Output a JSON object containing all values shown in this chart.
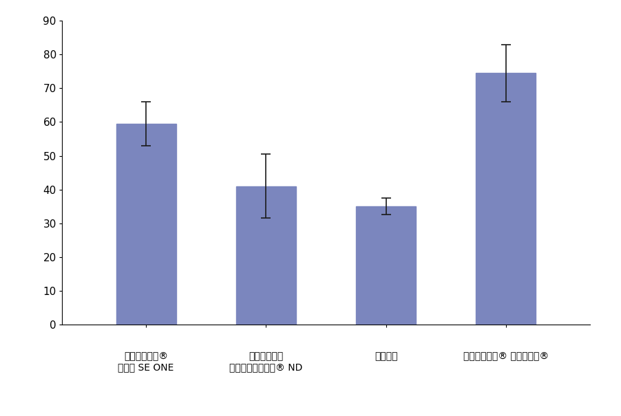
{
  "categories_line1": [
    "クリアフィル®",
    "クリアフィル",
    "他社製品",
    "クリアフィル® メガボンド®"
  ],
  "categories_line2": [
    "ボンド SE ONE",
    "トライエスボンド® ND",
    "",
    ""
  ],
  "values": [
    59.5,
    41.0,
    35.0,
    74.5
  ],
  "errors_upper": [
    6.5,
    9.5,
    2.5,
    8.5
  ],
  "errors_lower": [
    6.5,
    9.5,
    2.5,
    8.5
  ],
  "bar_color": "#7b86be",
  "error_color": "#1a1a1a",
  "ylim": [
    0,
    90
  ],
  "yticks": [
    0,
    10,
    20,
    30,
    40,
    50,
    60,
    70,
    80,
    90
  ],
  "background_color": "#ffffff",
  "bar_width": 0.5,
  "figure_width": 9.02,
  "figure_height": 6.05,
  "dpi": 100
}
